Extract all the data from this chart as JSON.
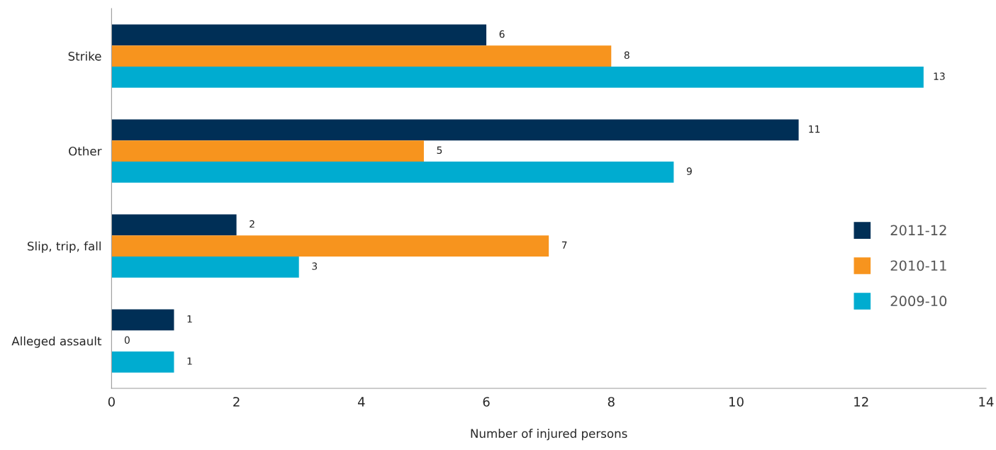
{
  "chart_data": {
    "type": "bar",
    "orientation": "horizontal",
    "categories": [
      "Strike",
      "Other",
      "Slip, trip, fall",
      "Alleged assault"
    ],
    "series": [
      {
        "name": "2011-12",
        "color": "#002f56",
        "values": [
          6,
          11,
          2,
          1
        ]
      },
      {
        "name": "2010-11",
        "color": "#f7941e",
        "values": [
          8,
          5,
          7,
          0
        ]
      },
      {
        "name": "2009-10",
        "color": "#00acd0",
        "values": [
          13,
          9,
          3,
          1
        ]
      }
    ],
    "xlabel": "Number of injured persons",
    "xlim": [
      0,
      14
    ],
    "xticks": [
      0,
      2,
      4,
      6,
      8,
      10,
      12,
      14
    ],
    "data_labels": true,
    "grid": false,
    "legend": "right"
  }
}
